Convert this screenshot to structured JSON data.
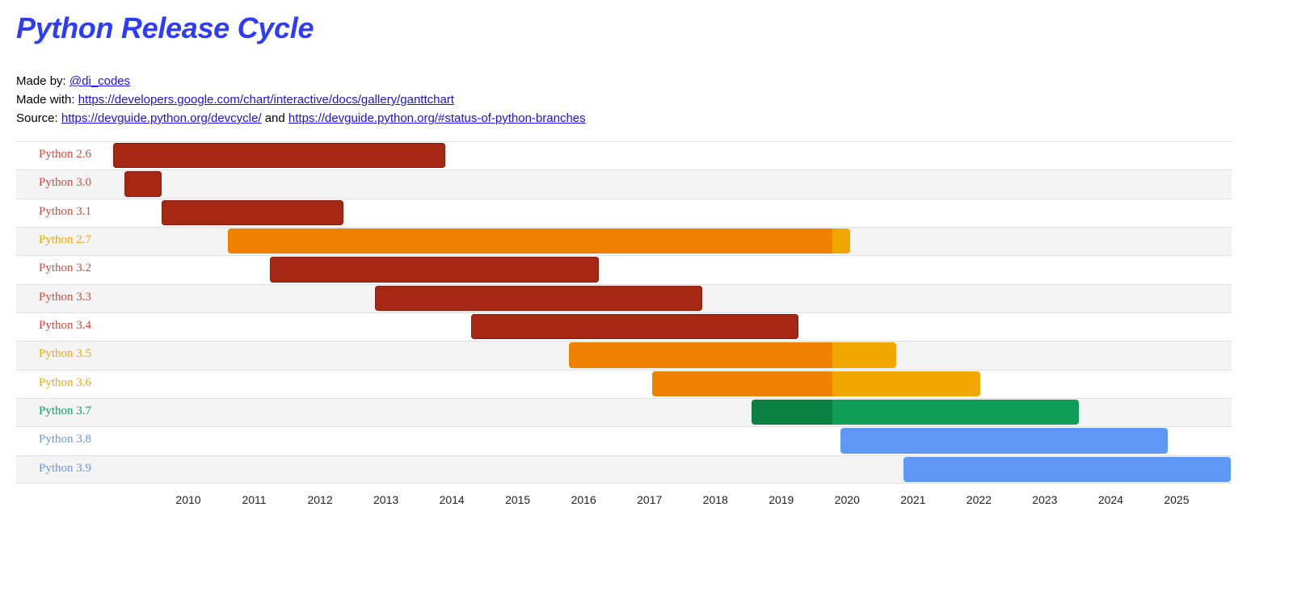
{
  "title": "Python Release Cycle",
  "made_by": {
    "label": "Made by:",
    "link": "@di_codes"
  },
  "made_with": {
    "label": "Made with:",
    "link": "https://developers.google.com/chart/interactive/docs/gallery/ganttchart"
  },
  "source": {
    "label": "Source:",
    "link1": "https://devguide.python.org/devcycle/",
    "and": "and",
    "link2": "https://devguide.python.org/#status-of-python-branches"
  },
  "chart_data": {
    "type": "gantt",
    "today": 2019.73,
    "x_ticks": [
      "2010",
      "2011",
      "2012",
      "2013",
      "2014",
      "2015",
      "2016",
      "2017",
      "2018",
      "2019",
      "2020",
      "2021",
      "2022",
      "2023",
      "2024",
      "2025"
    ],
    "status_colors": {
      "end-of-life": {
        "label": "#db4437",
        "bar": "#a52714"
      },
      "security": {
        "label": "#f2a600",
        "bar_past": "#ef8100",
        "bar_future": "#f2a600"
      },
      "bugfix": {
        "label": "#0f9d58",
        "bar_past": "#0b8043",
        "bar_future": "#0f9d58"
      },
      "features": {
        "label": "#5e97f6",
        "bar": "#5e97f6"
      }
    },
    "tasks": [
      {
        "name": "Python 2.6",
        "status": "end-of-life",
        "start": 2008.75,
        "end": 2013.82
      },
      {
        "name": "Python 3.0",
        "status": "end-of-life",
        "start": 2008.92,
        "end": 2009.49
      },
      {
        "name": "Python 3.1",
        "status": "end-of-life",
        "start": 2009.49,
        "end": 2012.27
      },
      {
        "name": "Python 2.7",
        "status": "security",
        "start": 2010.5,
        "end": 2020.0
      },
      {
        "name": "Python 3.2",
        "status": "end-of-life",
        "start": 2011.14,
        "end": 2016.16
      },
      {
        "name": "Python 3.3",
        "status": "end-of-life",
        "start": 2012.75,
        "end": 2017.74
      },
      {
        "name": "Python 3.4",
        "status": "end-of-life",
        "start": 2014.22,
        "end": 2019.21
      },
      {
        "name": "Python 3.5",
        "status": "security",
        "start": 2015.71,
        "end": 2020.7
      },
      {
        "name": "Python 3.6",
        "status": "security",
        "start": 2016.98,
        "end": 2021.98
      },
      {
        "name": "Python 3.7",
        "status": "bugfix",
        "start": 2018.49,
        "end": 2023.49
      },
      {
        "name": "Python 3.8",
        "status": "features",
        "start": 2019.85,
        "end": 2024.85
      },
      {
        "name": "Python 3.9",
        "status": "features",
        "start": 2020.81,
        "end": 2025.81
      }
    ]
  }
}
